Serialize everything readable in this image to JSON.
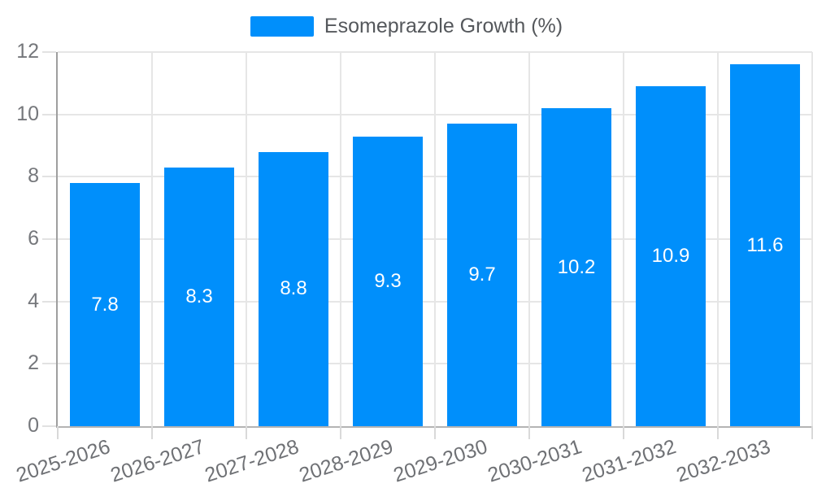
{
  "chart_data": {
    "type": "bar",
    "title": "",
    "categories": [
      "2025-2026",
      "2026-2027",
      "2027-2028",
      "2028-2029",
      "2029-2030",
      "2030-2031",
      "2031-2032",
      "2032-2033"
    ],
    "series": [
      {
        "name": "Esomeprazole Growth (%)",
        "values": [
          7.8,
          8.3,
          8.8,
          9.3,
          9.7,
          10.2,
          10.9,
          11.6
        ]
      }
    ],
    "data_labels": [
      "7.8",
      "8.3",
      "8.8",
      "9.3",
      "9.7",
      "10.2",
      "10.9",
      "11.6"
    ],
    "xlabel": "",
    "ylabel": "",
    "ylim": [
      0,
      12
    ],
    "ytick_step": 2,
    "ytick_labels": [
      "0",
      "2",
      "4",
      "6",
      "8",
      "10",
      "12"
    ],
    "grid": "on",
    "legend_position": "top",
    "colors": {
      "bar": "#008FFB",
      "bar_label_text": "#ffffff",
      "axis_label_text": "#6f7175",
      "legend_text": "#55585c",
      "gridline": "#e6e6e6"
    }
  }
}
